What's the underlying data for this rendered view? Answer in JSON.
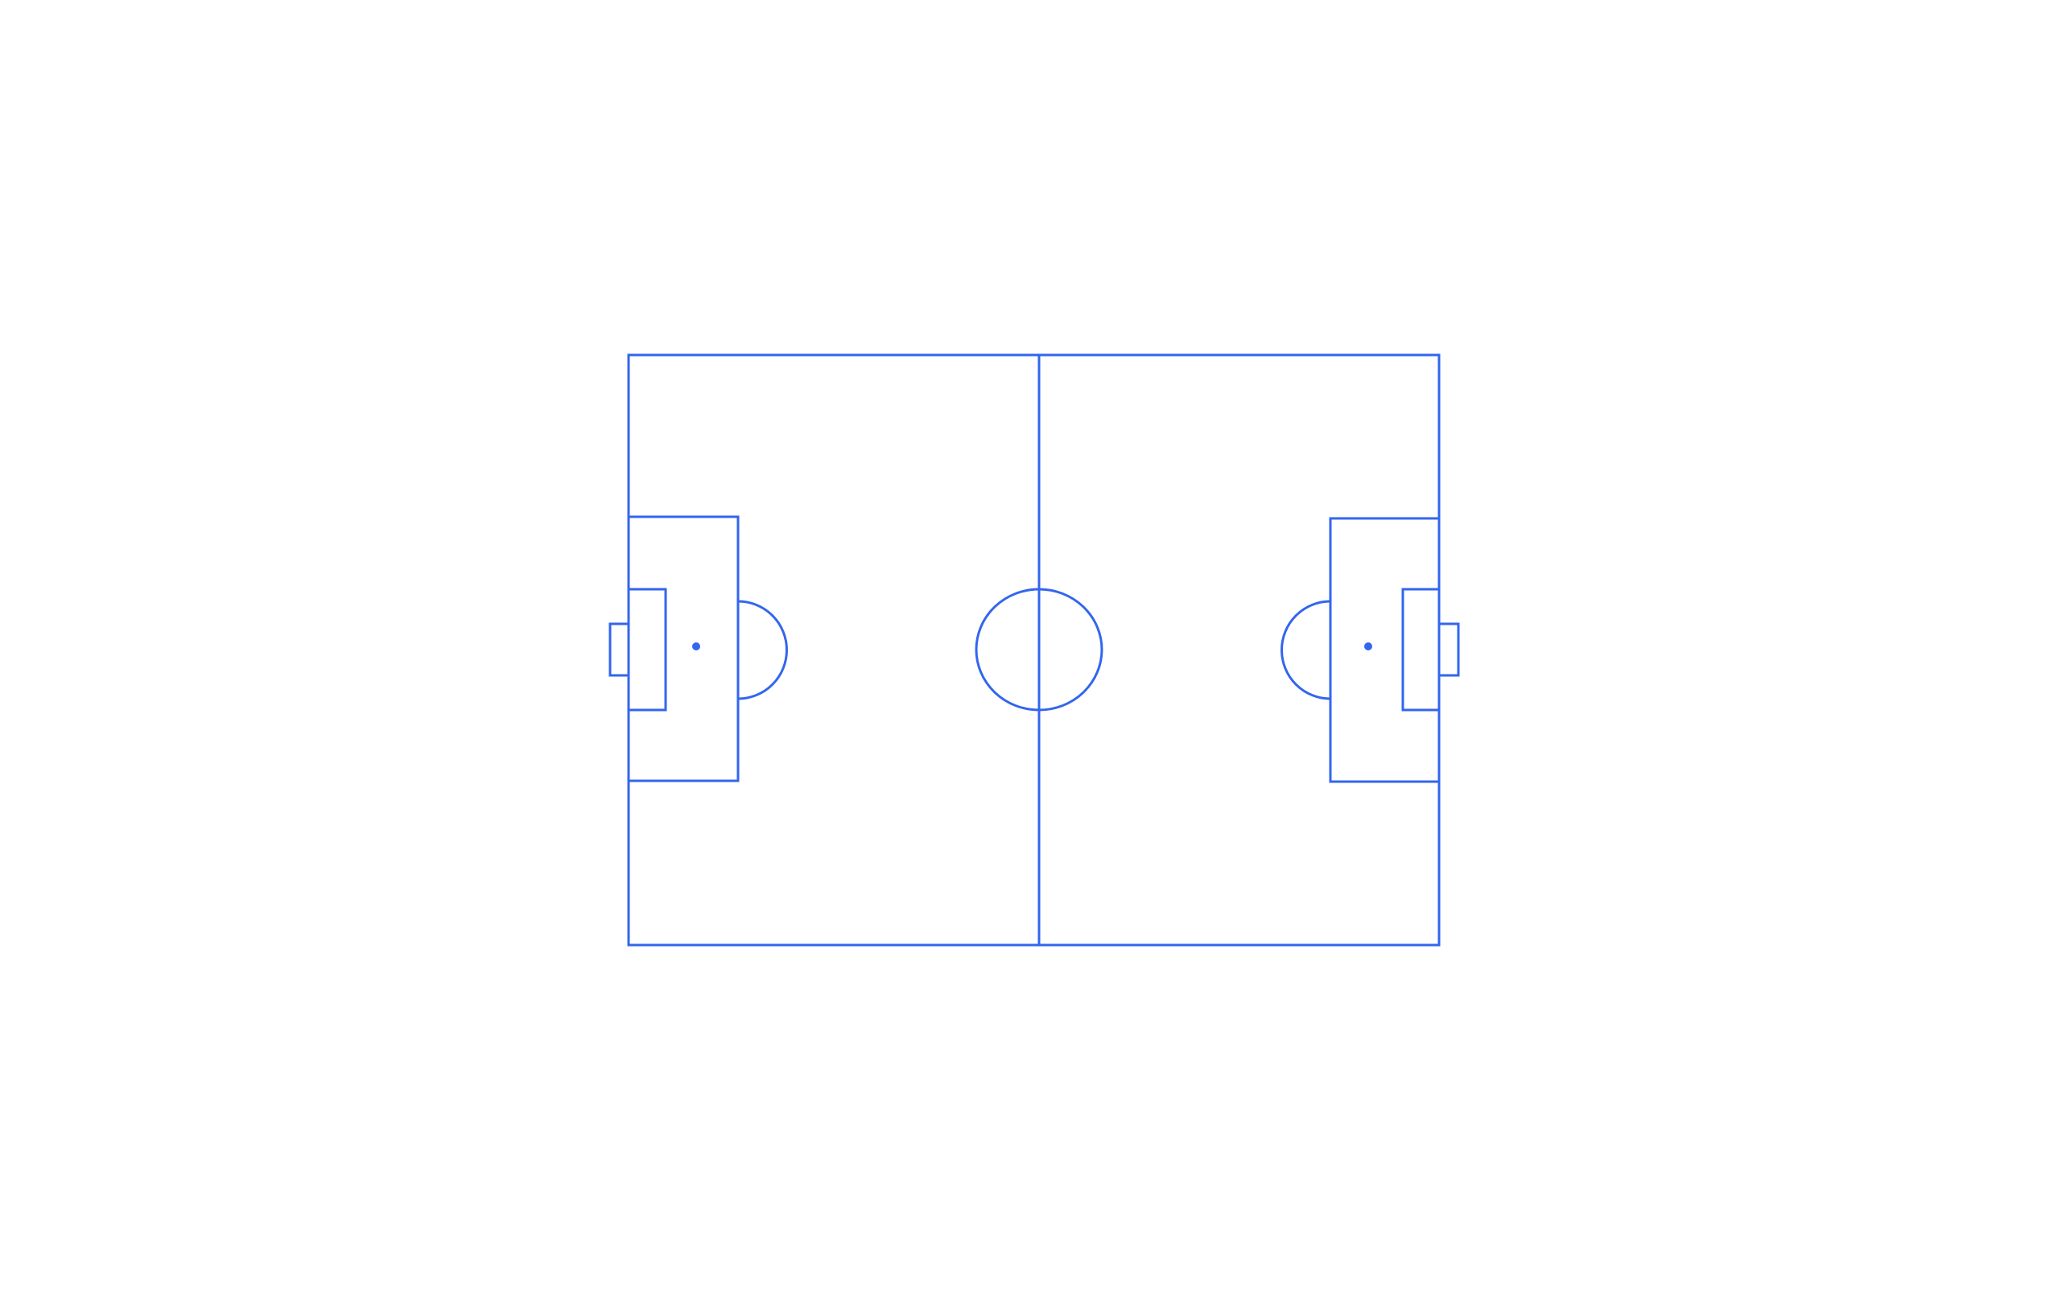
{
  "theme": {
    "line_color": "#3366ee",
    "background": "#ffffff"
  },
  "pitch": {
    "markings": [
      "outer-boundary",
      "halfway-line",
      "center-circle",
      "left-penalty-area",
      "left-goal-area",
      "left-goal",
      "left-penalty-spot",
      "left-penalty-arc",
      "right-penalty-area",
      "right-goal-area",
      "right-goal",
      "right-penalty-spot",
      "right-penalty-arc"
    ]
  }
}
